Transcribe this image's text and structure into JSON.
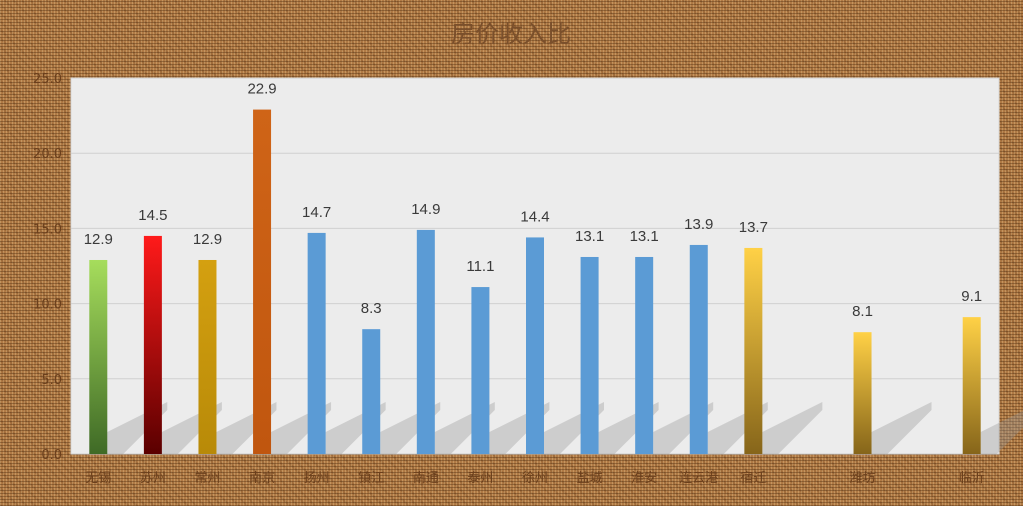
{
  "chart_data": {
    "type": "bar",
    "title": "房价收入比",
    "xlabel": "",
    "ylabel": "",
    "ylim": [
      0,
      25
    ],
    "yticks": [
      "0.0",
      "5.0",
      "10.0",
      "15.0",
      "20.0",
      "25.0"
    ],
    "grid": true,
    "categories": [
      "无锡",
      "苏州",
      "常州",
      "南京",
      "扬州",
      "镇江",
      "南通",
      "泰州",
      "徐州",
      "盐城",
      "淮安",
      "连云港",
      "宿迁",
      "",
      "潍坊",
      "",
      "临沂"
    ],
    "values": [
      12.9,
      14.5,
      12.9,
      22.9,
      14.7,
      8.3,
      14.9,
      11.1,
      14.4,
      13.1,
      13.1,
      13.9,
      13.7,
      null,
      8.1,
      null,
      9.1
    ],
    "labels": [
      "12.9",
      "14.5",
      "12.9",
      "22.9",
      "14.7",
      "8.3",
      "14.9",
      "11.1",
      "14.4",
      "13.1",
      "13.1",
      "13.9",
      "13.7",
      "",
      "8.1",
      "",
      "9.1"
    ],
    "bar_colors": [
      [
        "#a6dd5c",
        "#3f6a26"
      ],
      [
        "#ff1a1a",
        "#5a0000"
      ],
      [
        "#d4a010",
        "#b88a08"
      ],
      [
        "#cf6417",
        "#c0560f"
      ],
      [
        "#5b9bd5",
        "#5b9bd5"
      ],
      [
        "#5b9bd5",
        "#5b9bd5"
      ],
      [
        "#5b9bd5",
        "#5b9bd5"
      ],
      [
        "#5b9bd5",
        "#5b9bd5"
      ],
      [
        "#5b9bd5",
        "#5b9bd5"
      ],
      [
        "#5b9bd5",
        "#5b9bd5"
      ],
      [
        "#5b9bd5",
        "#5b9bd5"
      ],
      [
        "#5b9bd5",
        "#5b9bd5"
      ],
      [
        "#ffd146",
        "#86651a"
      ],
      null,
      [
        "#ffd146",
        "#86651a"
      ],
      null,
      [
        "#ffd146",
        "#86651a"
      ]
    ]
  }
}
